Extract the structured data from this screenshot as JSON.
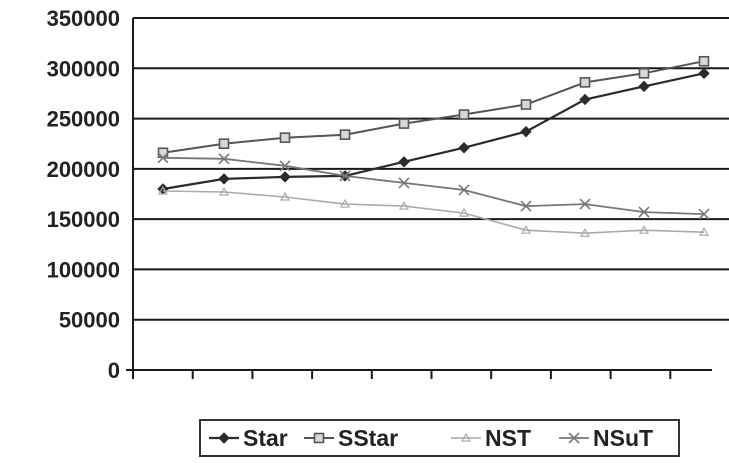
{
  "chart_data": {
    "type": "line",
    "title": "",
    "xlabel": "",
    "ylabel": "",
    "x": [
      1,
      2,
      3,
      4,
      5,
      6,
      7,
      8,
      9,
      10
    ],
    "ylim": [
      0,
      350000
    ],
    "yticks": [
      "0",
      "50000",
      "100000",
      "150000",
      "200000",
      "250000",
      "300000",
      "350000"
    ],
    "grid": "horizontal",
    "legend_position": "bottom",
    "series": [
      {
        "name": "Star",
        "marker": "diamond",
        "color": "#2b2b2b",
        "values": [
          180000,
          190000,
          192000,
          193000,
          207000,
          221000,
          237000,
          269000,
          282000,
          295000
        ]
      },
      {
        "name": "SStar",
        "marker": "square",
        "color": "#555555",
        "values": [
          216000,
          225000,
          231000,
          234000,
          245000,
          254000,
          264000,
          286000,
          295000,
          307000
        ]
      },
      {
        "name": "NST",
        "marker": "triangle",
        "color": "#aaaaaa",
        "values": [
          178000,
          177000,
          172000,
          165000,
          163000,
          156000,
          139000,
          136000,
          139000,
          137000
        ]
      },
      {
        "name": "NSuT",
        "marker": "x",
        "color": "#777777",
        "values": [
          211000,
          210000,
          203000,
          193000,
          186000,
          179000,
          163000,
          165000,
          157000,
          155000
        ]
      }
    ]
  }
}
